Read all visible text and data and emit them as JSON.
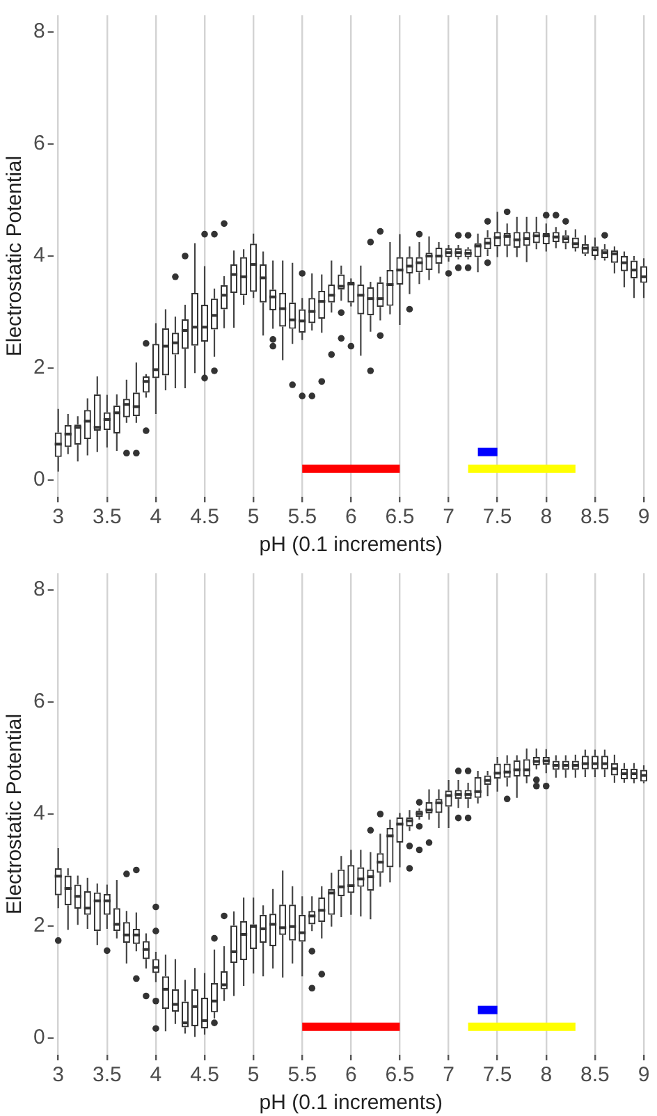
{
  "chart_data": [
    {
      "type": "box",
      "xlabel": "pH (0.1 increments)",
      "ylabel": "Electrostatic Potential",
      "grid": "x",
      "ylim": [
        -0.3,
        8.3
      ],
      "yticks": [
        0,
        2,
        4,
        6,
        8
      ],
      "categories": [
        "3",
        null,
        null,
        null,
        null,
        "3.5",
        null,
        null,
        null,
        null,
        "4",
        null,
        null,
        null,
        null,
        "4.5",
        null,
        null,
        null,
        null,
        "5",
        null,
        null,
        null,
        null,
        "5.5",
        null,
        null,
        null,
        null,
        "6",
        null,
        null,
        null,
        null,
        "6.5",
        null,
        null,
        null,
        null,
        "7",
        null,
        null,
        null,
        null,
        "7.5",
        null,
        null,
        null,
        null,
        "8",
        null,
        null,
        null,
        null,
        "8.5",
        null,
        null,
        null,
        null,
        "9"
      ],
      "boxes": [
        {
          "low": 0.15,
          "q1": 0.41,
          "median": 0.64,
          "q3": 0.85,
          "high": 1.27
        },
        {
          "low": 0.46,
          "q1": 0.59,
          "median": 0.82,
          "q3": 0.98,
          "high": 1.18
        },
        {
          "low": 0.33,
          "q1": 0.63,
          "median": 0.94,
          "q3": 0.99,
          "high": 1.14
        },
        {
          "low": 0.44,
          "q1": 0.73,
          "median": 1.05,
          "q3": 1.25,
          "high": 1.46
        },
        {
          "low": 0.5,
          "q1": 0.88,
          "median": 0.94,
          "q3": 1.53,
          "high": 1.85
        },
        {
          "low": 0.58,
          "q1": 0.89,
          "median": 1.08,
          "q3": 1.21,
          "high": 1.52
        },
        {
          "low": 0.52,
          "q1": 0.83,
          "median": 1.2,
          "q3": 1.33,
          "high": 1.53
        },
        {
          "low": 1.02,
          "q1": 1.12,
          "median": 1.35,
          "q3": 1.45,
          "high": 1.79,
          "outliers": [
            0.48
          ]
        },
        {
          "low": 1.02,
          "q1": 1.14,
          "median": 1.31,
          "q3": 1.56,
          "high": 2.1,
          "outliers": [
            0.48
          ]
        },
        {
          "low": 1.47,
          "q1": 1.56,
          "median": 1.76,
          "q3": 1.85,
          "high": 1.89,
          "outliers": [
            2.44,
            0.88
          ]
        },
        {
          "low": 1.18,
          "q1": 1.82,
          "median": 1.97,
          "q3": 2.43,
          "high": 2.8
        },
        {
          "low": 1.6,
          "q1": 1.87,
          "median": 2.39,
          "q3": 2.71,
          "high": 3.05
        },
        {
          "low": 1.64,
          "q1": 2.24,
          "median": 2.45,
          "q3": 2.63,
          "high": 2.92,
          "outliers": [
            3.63
          ]
        },
        {
          "low": 1.64,
          "q1": 2.34,
          "median": 2.67,
          "q3": 2.87,
          "high": 3.13,
          "outliers": [
            4.0
          ]
        },
        {
          "low": 1.91,
          "q1": 2.4,
          "median": 2.73,
          "q3": 3.34,
          "high": 4.23
        },
        {
          "low": 1.76,
          "q1": 2.47,
          "median": 2.73,
          "q3": 3.13,
          "high": 3.82,
          "outliers": [
            4.39,
            1.82
          ]
        },
        {
          "low": 2.2,
          "q1": 2.69,
          "median": 2.94,
          "q3": 3.24,
          "high": 3.42,
          "outliers": [
            4.39,
            1.95
          ]
        },
        {
          "low": 2.71,
          "q1": 3.05,
          "median": 3.3,
          "q3": 3.48,
          "high": 3.64,
          "outliers": [
            4.58
          ]
        },
        {
          "low": 2.72,
          "q1": 3.34,
          "median": 3.67,
          "q3": 3.85,
          "high": 4.1
        },
        {
          "low": 3.13,
          "q1": 3.3,
          "median": 3.63,
          "q3": 3.98,
          "high": 4.12
        },
        {
          "low": 3.25,
          "q1": 3.36,
          "median": 3.85,
          "q3": 4.22,
          "high": 4.4
        },
        {
          "low": 2.58,
          "q1": 3.17,
          "median": 3.61,
          "q3": 3.85,
          "high": 4.08
        },
        {
          "low": 2.7,
          "q1": 3.03,
          "median": 3.27,
          "q3": 3.4,
          "high": 3.92,
          "outliers": [
            2.51,
            2.39
          ]
        },
        {
          "low": 2.14,
          "q1": 2.74,
          "median": 3.06,
          "q3": 3.34,
          "high": 3.92
        },
        {
          "low": 2.43,
          "q1": 2.7,
          "median": 2.86,
          "q3": 3.17,
          "high": 3.88,
          "outliers": [
            1.7
          ]
        },
        {
          "low": 2.5,
          "q1": 2.63,
          "median": 2.84,
          "q3": 3.05,
          "high": 3.25,
          "outliers": [
            3.69,
            1.5
          ]
        },
        {
          "low": 2.67,
          "q1": 2.8,
          "median": 3.01,
          "q3": 3.25,
          "high": 3.69,
          "outliers": [
            1.5
          ]
        },
        {
          "low": 2.63,
          "q1": 2.88,
          "median": 3.19,
          "q3": 3.38,
          "high": 3.67,
          "outliers": [
            1.76
          ]
        },
        {
          "low": 2.99,
          "q1": 3.17,
          "median": 3.3,
          "q3": 3.49,
          "high": 3.92,
          "outliers": [
            2.24
          ]
        },
        {
          "low": 3.2,
          "q1": 3.4,
          "median": 3.46,
          "q3": 3.67,
          "high": 3.83,
          "outliers": [
            2.99,
            2.53
          ]
        },
        {
          "low": 3.1,
          "q1": 3.17,
          "median": 3.5,
          "q3": 3.54,
          "high": 3.6,
          "outliers": [
            2.39
          ]
        },
        {
          "low": 2.22,
          "q1": 2.96,
          "median": 3.3,
          "q3": 3.49,
          "high": 3.83
        },
        {
          "low": 2.65,
          "q1": 2.94,
          "median": 3.24,
          "q3": 3.44,
          "high": 3.54,
          "outliers": [
            4.25,
            1.95
          ]
        },
        {
          "low": 2.85,
          "q1": 3.09,
          "median": 3.24,
          "q3": 3.53,
          "high": 3.63,
          "outliers": [
            4.44,
            2.58
          ]
        },
        {
          "low": 2.96,
          "q1": 3.11,
          "median": 3.49,
          "q3": 3.75,
          "high": 4.25
        },
        {
          "low": 2.77,
          "q1": 3.49,
          "median": 3.75,
          "q3": 3.98,
          "high": 4.39
        },
        {
          "low": 3.32,
          "q1": 3.69,
          "median": 3.82,
          "q3": 3.98,
          "high": 4.17,
          "outliers": [
            3.05
          ]
        },
        {
          "low": 3.5,
          "q1": 3.71,
          "median": 3.88,
          "q3": 3.98,
          "high": 4.25,
          "outliers": [
            4.39
          ]
        },
        {
          "low": 3.57,
          "q1": 3.75,
          "median": 4.0,
          "q3": 4.06,
          "high": 4.35
        },
        {
          "low": 3.69,
          "q1": 3.86,
          "median": 4.0,
          "q3": 4.15,
          "high": 4.25
        },
        {
          "low": 3.9,
          "q1": 3.98,
          "median": 4.06,
          "q3": 4.14,
          "high": 4.2,
          "outliers": [
            3.69
          ]
        },
        {
          "low": 3.94,
          "q1": 3.98,
          "median": 4.06,
          "q3": 4.14,
          "high": 4.2,
          "outliers": [
            4.37,
            3.79
          ]
        },
        {
          "low": 3.94,
          "q1": 3.98,
          "median": 4.05,
          "q3": 4.12,
          "high": 4.16,
          "outliers": [
            4.37,
            3.79
          ]
        },
        {
          "low": 3.71,
          "q1": 3.98,
          "median": 4.18,
          "q3": 4.23,
          "high": 4.4
        },
        {
          "low": 4.0,
          "q1": 4.12,
          "median": 4.23,
          "q3": 4.33,
          "high": 4.46,
          "outliers": [
            4.62,
            3.88
          ]
        },
        {
          "low": 3.98,
          "q1": 4.17,
          "median": 4.33,
          "q3": 4.43,
          "high": 4.79
        },
        {
          "low": 3.98,
          "q1": 4.18,
          "median": 4.35,
          "q3": 4.41,
          "high": 4.58,
          "outliers": [
            4.79
          ]
        },
        {
          "low": 3.98,
          "q1": 4.15,
          "median": 4.29,
          "q3": 4.43,
          "high": 4.7
        },
        {
          "low": 3.89,
          "q1": 4.18,
          "median": 4.31,
          "q3": 4.43,
          "high": 4.7
        },
        {
          "low": 4.12,
          "q1": 4.23,
          "median": 4.36,
          "q3": 4.43,
          "high": 4.7
        },
        {
          "low": 4.08,
          "q1": 4.21,
          "median": 4.36,
          "q3": 4.41,
          "high": 4.58,
          "outliers": [
            4.73
          ]
        },
        {
          "low": 4.14,
          "q1": 4.25,
          "median": 4.34,
          "q3": 4.43,
          "high": 4.52,
          "outliers": [
            4.73
          ]
        },
        {
          "low": 4.12,
          "q1": 4.23,
          "median": 4.31,
          "q3": 4.37,
          "high": 4.46,
          "outliers": [
            4.62
          ]
        },
        {
          "low": 4.08,
          "q1": 4.14,
          "median": 4.22,
          "q3": 4.33,
          "high": 4.48
        },
        {
          "low": 4.0,
          "q1": 4.04,
          "median": 4.14,
          "q3": 4.21,
          "high": 4.37
        },
        {
          "low": 3.93,
          "q1": 4.0,
          "median": 4.11,
          "q3": 4.17,
          "high": 4.33
        },
        {
          "low": 3.92,
          "q1": 3.96,
          "median": 4.06,
          "q3": 4.12,
          "high": 4.21,
          "outliers": [
            4.37
          ]
        },
        {
          "low": 3.69,
          "q1": 3.88,
          "median": 4.04,
          "q3": 4.1,
          "high": 4.17
        },
        {
          "low": 3.44,
          "q1": 3.73,
          "median": 3.88,
          "q3": 4.0,
          "high": 4.08
        },
        {
          "low": 3.25,
          "q1": 3.6,
          "median": 3.75,
          "q3": 3.92,
          "high": 4.0
        },
        {
          "low": 3.25,
          "q1": 3.52,
          "median": 3.63,
          "q3": 3.82,
          "high": 3.96
        }
      ],
      "series": [
        {
          "type": "line",
          "color": "#ff0000",
          "values": [
            null,
            null,
            null,
            null,
            null,
            null,
            null,
            null,
            null,
            null,
            null,
            null,
            null,
            null,
            null,
            null,
            null,
            null,
            null,
            null,
            null,
            null,
            null,
            null,
            null,
            0.2,
            0.2,
            0.2,
            0.2,
            0.2,
            0.2,
            0.2,
            0.2,
            0.2,
            0.2,
            0.2,
            null,
            null,
            null,
            null,
            null,
            null,
            null,
            null,
            null,
            null,
            null,
            null,
            null,
            null,
            null,
            null,
            null,
            null,
            null,
            null,
            null,
            null,
            null,
            null,
            null
          ]
        },
        {
          "type": "line",
          "color": "#ffff00",
          "values": [
            null,
            null,
            null,
            null,
            null,
            null,
            null,
            null,
            null,
            null,
            null,
            null,
            null,
            null,
            null,
            null,
            null,
            null,
            null,
            null,
            null,
            null,
            null,
            null,
            null,
            null,
            null,
            null,
            null,
            null,
            null,
            null,
            null,
            null,
            null,
            null,
            null,
            null,
            null,
            null,
            null,
            null,
            0.2,
            0.2,
            0.2,
            0.2,
            0.2,
            0.2,
            0.2,
            0.2,
            0.2,
            0.2,
            0.2,
            0.2,
            null,
            null,
            null,
            null,
            null,
            null,
            null
          ]
        },
        {
          "type": "line",
          "color": "#0000ff",
          "values": [
            null,
            null,
            null,
            null,
            null,
            null,
            null,
            null,
            null,
            null,
            null,
            null,
            null,
            null,
            null,
            null,
            null,
            null,
            null,
            null,
            null,
            null,
            null,
            null,
            null,
            null,
            null,
            null,
            null,
            null,
            null,
            null,
            null,
            null,
            null,
            null,
            null,
            null,
            null,
            null,
            null,
            null,
            null,
            0.5,
            0.5,
            0.5,
            null,
            null,
            null,
            null,
            null,
            null,
            null,
            null,
            null,
            null,
            null,
            null,
            null,
            null,
            null
          ]
        }
      ]
    },
    {
      "type": "box",
      "xlabel": "pH (0.1 increments)",
      "ylabel": "Electrostatic Potential",
      "grid": "x",
      "ylim": [
        -0.3,
        8.3
      ],
      "yticks": [
        0,
        2,
        4,
        6,
        8
      ],
      "categories": [
        "3",
        null,
        null,
        null,
        null,
        "3.5",
        null,
        null,
        null,
        null,
        "4",
        null,
        null,
        null,
        null,
        "4.5",
        null,
        null,
        null,
        null,
        "5",
        null,
        null,
        null,
        null,
        "5.5",
        null,
        null,
        null,
        null,
        "6",
        null,
        null,
        null,
        null,
        "6.5",
        null,
        null,
        null,
        null,
        "7",
        null,
        null,
        null,
        null,
        "7.5",
        null,
        null,
        null,
        null,
        "8",
        null,
        null,
        null,
        null,
        "8.5",
        null,
        null,
        null,
        null,
        "9"
      ],
      "boxes": [
        {
          "low": 2.32,
          "q1": 2.55,
          "median": 2.89,
          "q3": 3.03,
          "high": 3.39,
          "outliers": [
            1.74
          ]
        },
        {
          "low": 1.93,
          "q1": 2.37,
          "median": 2.67,
          "q3": 2.9,
          "high": 3.03
        },
        {
          "low": 2.02,
          "q1": 2.31,
          "median": 2.53,
          "q3": 2.74,
          "high": 2.9
        },
        {
          "low": 1.95,
          "q1": 2.2,
          "median": 2.32,
          "q3": 2.62,
          "high": 2.86
        },
        {
          "low": 1.66,
          "q1": 1.91,
          "median": 2.45,
          "q3": 2.6,
          "high": 2.76
        },
        {
          "low": 1.95,
          "q1": 2.2,
          "median": 2.45,
          "q3": 2.57,
          "high": 2.74,
          "outliers": [
            1.56
          ]
        },
        {
          "low": 1.78,
          "q1": 1.91,
          "median": 2.03,
          "q3": 2.32,
          "high": 2.82
        },
        {
          "low": 1.33,
          "q1": 1.7,
          "median": 1.84,
          "q3": 2.07,
          "high": 2.27,
          "outliers": [
            2.93
          ]
        },
        {
          "low": 1.55,
          "q1": 1.68,
          "median": 1.84,
          "q3": 1.95,
          "high": 2.24,
          "outliers": [
            3.0,
            1.06
          ]
        },
        {
          "low": 1.24,
          "q1": 1.41,
          "median": 1.58,
          "q3": 1.73,
          "high": 1.87,
          "outliers": [
            0.75
          ]
        },
        {
          "low": 1.0,
          "q1": 1.16,
          "median": 1.26,
          "q3": 1.41,
          "high": 1.54,
          "outliers": [
            2.34,
            1.91,
            0.66,
            0.17
          ]
        },
        {
          "low": 0.12,
          "q1": 0.52,
          "median": 0.87,
          "q3": 1.1,
          "high": 1.49
        },
        {
          "low": 0.25,
          "q1": 0.47,
          "median": 0.6,
          "q3": 0.87,
          "high": 1.41
        },
        {
          "low": 0.08,
          "q1": 0.19,
          "median": 0.27,
          "q3": 0.65,
          "high": 1.04
        },
        {
          "low": 0.02,
          "q1": 0.21,
          "median": 0.56,
          "q3": 0.87,
          "high": 1.25
        },
        {
          "low": 0.06,
          "q1": 0.17,
          "median": 0.31,
          "q3": 0.72,
          "high": 1.16
        },
        {
          "low": 0.35,
          "q1": 0.46,
          "median": 0.66,
          "q3": 0.98,
          "high": 1.58,
          "outliers": [
            1.78,
            0.27
          ]
        },
        {
          "low": 0.66,
          "q1": 0.87,
          "median": 0.95,
          "q3": 1.19,
          "high": 1.64,
          "outliers": [
            2.18
          ]
        },
        {
          "low": 0.75,
          "q1": 1.34,
          "median": 1.54,
          "q3": 2.01,
          "high": 2.26
        },
        {
          "low": 0.93,
          "q1": 1.39,
          "median": 1.85,
          "q3": 2.09,
          "high": 2.51
        },
        {
          "low": 1.15,
          "q1": 1.59,
          "median": 1.99,
          "q3": 2.03,
          "high": 2.51
        },
        {
          "low": 1.1,
          "q1": 1.7,
          "median": 1.95,
          "q3": 2.2,
          "high": 2.37
        },
        {
          "low": 1.24,
          "q1": 1.64,
          "median": 2.03,
          "q3": 2.22,
          "high": 2.66
        },
        {
          "low": 1.08,
          "q1": 1.84,
          "median": 1.97,
          "q3": 2.38,
          "high": 2.99
        },
        {
          "low": 1.33,
          "q1": 1.74,
          "median": 1.99,
          "q3": 2.38,
          "high": 2.71
        },
        {
          "low": 1.1,
          "q1": 1.72,
          "median": 1.88,
          "q3": 2.2,
          "high": 2.53
        },
        {
          "low": 1.91,
          "q1": 2.03,
          "median": 2.18,
          "q3": 2.27,
          "high": 2.53,
          "outliers": [
            1.55,
            0.89
          ]
        },
        {
          "low": 1.78,
          "q1": 2.07,
          "median": 2.28,
          "q3": 2.51,
          "high": 2.71,
          "outliers": [
            1.14
          ]
        },
        {
          "low": 1.99,
          "q1": 2.2,
          "median": 2.59,
          "q3": 2.66,
          "high": 2.95
        },
        {
          "low": 2.16,
          "q1": 2.53,
          "median": 2.7,
          "q3": 3.01,
          "high": 3.25
        },
        {
          "low": 2.2,
          "q1": 2.59,
          "median": 2.72,
          "q3": 3.09,
          "high": 3.36
        },
        {
          "low": 2.17,
          "q1": 2.7,
          "median": 2.84,
          "q3": 3.05,
          "high": 3.36
        },
        {
          "low": 2.12,
          "q1": 2.63,
          "median": 2.88,
          "q3": 3.01,
          "high": 3.32,
          "outliers": [
            3.71
          ]
        },
        {
          "low": 2.7,
          "q1": 2.95,
          "median": 3.14,
          "q3": 3.3,
          "high": 3.65,
          "outliers": [
            4.0
          ]
        },
        {
          "low": 2.78,
          "q1": 3.05,
          "median": 3.61,
          "q3": 3.75,
          "high": 3.9
        },
        {
          "low": 3.05,
          "q1": 3.49,
          "median": 3.82,
          "q3": 3.94,
          "high": 4.02
        },
        {
          "low": 3.7,
          "q1": 3.78,
          "median": 3.88,
          "q3": 3.94,
          "high": 4.07,
          "outliers": [
            3.43,
            3.03
          ]
        },
        {
          "low": 3.9,
          "q1": 3.95,
          "median": 4.01,
          "q3": 4.06,
          "high": 4.1,
          "outliers": [
            4.21,
            3.78,
            3.36
          ]
        },
        {
          "low": 3.9,
          "q1": 4.01,
          "median": 4.07,
          "q3": 4.21,
          "high": 4.44,
          "outliers": [
            3.49
          ]
        },
        {
          "low": 3.75,
          "q1": 4.02,
          "median": 4.2,
          "q3": 4.27,
          "high": 4.44
        },
        {
          "low": 3.75,
          "q1": 4.13,
          "median": 4.33,
          "q3": 4.42,
          "high": 4.61
        },
        {
          "low": 4.11,
          "q1": 4.27,
          "median": 4.35,
          "q3": 4.43,
          "high": 4.61,
          "outliers": [
            4.77,
            3.93
          ]
        },
        {
          "low": 4.11,
          "q1": 4.27,
          "median": 4.35,
          "q3": 4.43,
          "high": 4.56,
          "outliers": [
            4.77,
            3.93
          ]
        },
        {
          "low": 4.19,
          "q1": 4.29,
          "median": 4.4,
          "q3": 4.66,
          "high": 4.77
        },
        {
          "low": 4.32,
          "q1": 4.52,
          "median": 4.6,
          "q3": 4.69,
          "high": 4.77
        },
        {
          "low": 4.4,
          "q1": 4.63,
          "median": 4.73,
          "q3": 4.9,
          "high": 5.02
        },
        {
          "low": 4.49,
          "q1": 4.65,
          "median": 4.75,
          "q3": 4.9,
          "high": 5.05,
          "outliers": [
            4.27
          ]
        },
        {
          "low": 4.29,
          "q1": 4.67,
          "median": 4.79,
          "q3": 4.96,
          "high": 5.05
        },
        {
          "low": 4.55,
          "q1": 4.67,
          "median": 4.79,
          "q3": 4.98,
          "high": 5.17
        },
        {
          "low": 4.8,
          "q1": 4.87,
          "median": 4.94,
          "q3": 5.02,
          "high": 5.17,
          "outliers": [
            4.61,
            4.5
          ]
        },
        {
          "low": 4.73,
          "q1": 4.88,
          "median": 4.95,
          "q3": 5.02,
          "high": 5.16,
          "outliers": [
            4.5
          ]
        },
        {
          "low": 4.65,
          "q1": 4.79,
          "median": 4.87,
          "q3": 4.95,
          "high": 5.05
        },
        {
          "low": 4.65,
          "q1": 4.79,
          "median": 4.87,
          "q3": 4.95,
          "high": 5.05
        },
        {
          "low": 4.65,
          "q1": 4.79,
          "median": 4.87,
          "q3": 4.95,
          "high": 5.06
        },
        {
          "low": 4.66,
          "q1": 4.8,
          "median": 4.9,
          "q3": 5.04,
          "high": 5.15
        },
        {
          "low": 4.66,
          "q1": 4.8,
          "median": 4.9,
          "q3": 5.04,
          "high": 5.15
        },
        {
          "low": 4.66,
          "q1": 4.8,
          "median": 4.9,
          "q3": 5.04,
          "high": 5.15
        },
        {
          "low": 4.56,
          "q1": 4.69,
          "median": 4.81,
          "q3": 4.91,
          "high": 5.06
        },
        {
          "low": 4.56,
          "q1": 4.62,
          "median": 4.72,
          "q3": 4.81,
          "high": 4.91
        },
        {
          "low": 4.55,
          "q1": 4.62,
          "median": 4.72,
          "q3": 4.81,
          "high": 4.91
        },
        {
          "low": 4.55,
          "q1": 4.58,
          "median": 4.69,
          "q3": 4.79,
          "high": 4.87
        }
      ],
      "series": [
        {
          "type": "line",
          "color": "#ff0000",
          "values": [
            null,
            null,
            null,
            null,
            null,
            null,
            null,
            null,
            null,
            null,
            null,
            null,
            null,
            null,
            null,
            null,
            null,
            null,
            null,
            null,
            null,
            null,
            null,
            null,
            null,
            0.2,
            0.2,
            0.2,
            0.2,
            0.2,
            0.2,
            0.2,
            0.2,
            0.2,
            0.2,
            0.2,
            null,
            null,
            null,
            null,
            null,
            null,
            null,
            null,
            null,
            null,
            null,
            null,
            null,
            null,
            null,
            null,
            null,
            null,
            null,
            null,
            null,
            null,
            null,
            null,
            null
          ]
        },
        {
          "type": "line",
          "color": "#ffff00",
          "values": [
            null,
            null,
            null,
            null,
            null,
            null,
            null,
            null,
            null,
            null,
            null,
            null,
            null,
            null,
            null,
            null,
            null,
            null,
            null,
            null,
            null,
            null,
            null,
            null,
            null,
            null,
            null,
            null,
            null,
            null,
            null,
            null,
            null,
            null,
            null,
            null,
            null,
            null,
            null,
            null,
            null,
            null,
            0.2,
            0.2,
            0.2,
            0.2,
            0.2,
            0.2,
            0.2,
            0.2,
            0.2,
            0.2,
            0.2,
            0.2,
            null,
            null,
            null,
            null,
            null,
            null,
            null
          ]
        },
        {
          "type": "line",
          "color": "#0000ff",
          "values": [
            null,
            null,
            null,
            null,
            null,
            null,
            null,
            null,
            null,
            null,
            null,
            null,
            null,
            null,
            null,
            null,
            null,
            null,
            null,
            null,
            null,
            null,
            null,
            null,
            null,
            null,
            null,
            null,
            null,
            null,
            null,
            null,
            null,
            null,
            null,
            null,
            null,
            null,
            null,
            null,
            null,
            null,
            null,
            0.5,
            0.5,
            0.5,
            null,
            null,
            null,
            null,
            null,
            null,
            null,
            null,
            null,
            null,
            null,
            null,
            null,
            null,
            null
          ]
        }
      ]
    }
  ]
}
